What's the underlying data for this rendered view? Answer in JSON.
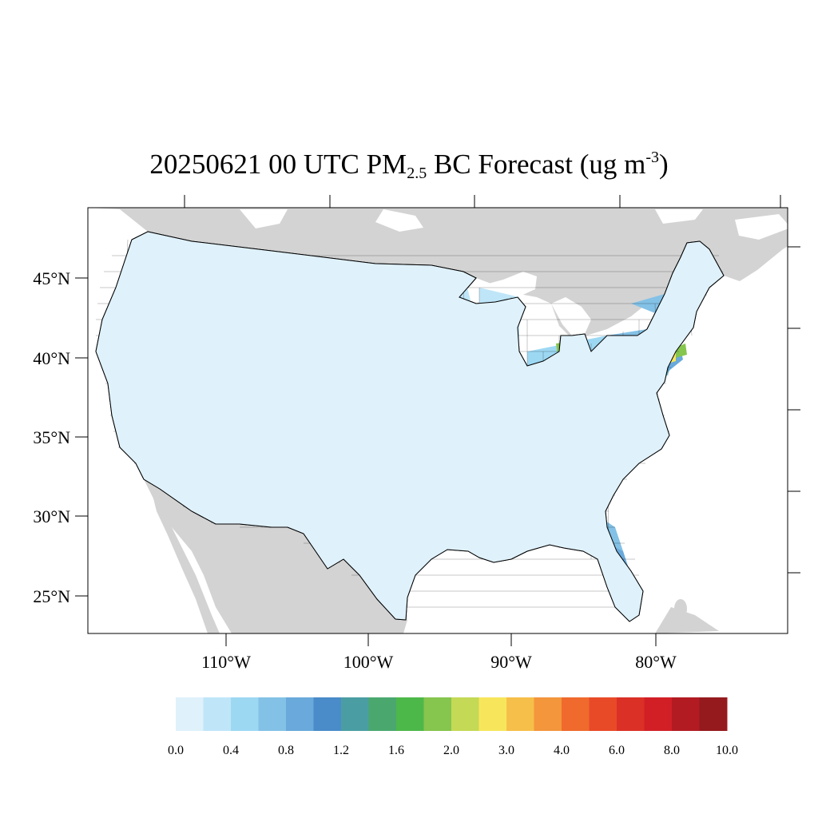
{
  "title": {
    "pre": "20250621 00 UTC PM",
    "sub": "2.5",
    "mid": " BC Forecast (ug m",
    "sup": "-3",
    "post": ")"
  },
  "lat_labels": [
    "45°N",
    "40°N",
    "35°N",
    "30°N",
    "25°N"
  ],
  "lon_labels": [
    "110°W",
    "100°W",
    "90°W",
    "80°W"
  ],
  "colorbar": {
    "colors": [
      "#dff1fb",
      "#bfe6f8",
      "#9dd8f3",
      "#83c1e6",
      "#69a9db",
      "#4a8bc9",
      "#4a9ea3",
      "#4aa86e",
      "#4db84a",
      "#86c54e",
      "#c4d955",
      "#f7e65c",
      "#f6bf4a",
      "#f3963c",
      "#ef6a2c",
      "#e84a28",
      "#db3026",
      "#d21f26",
      "#b31b22",
      "#951a1d"
    ],
    "labels": [
      "0.0",
      "0.4",
      "0.8",
      "1.2",
      "1.6",
      "2.0",
      "3.0",
      "4.0",
      "6.0",
      "8.0",
      "10.0"
    ]
  },
  "legend_colors": {
    "land_outside": "#d3d3d3",
    "water": "#ffffff",
    "border": "#000000"
  }
}
